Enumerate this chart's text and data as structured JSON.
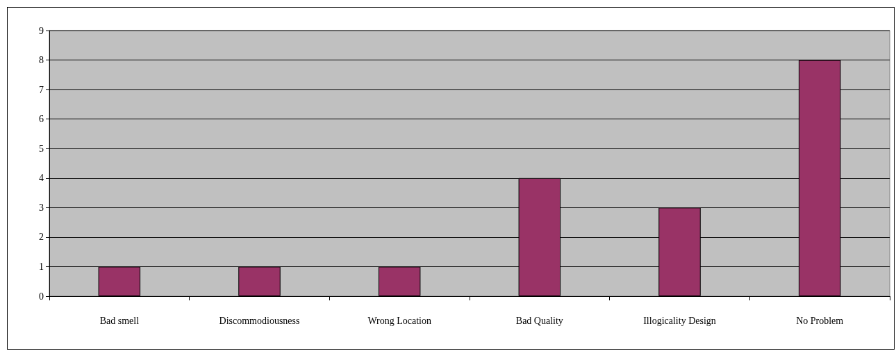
{
  "chart_data": {
    "type": "bar",
    "categories": [
      "Bad smell",
      "Discommodiousness",
      "Wrong Location",
      "Bad Quality",
      "Illogicality Design",
      "No Problem"
    ],
    "values": [
      1,
      1,
      1,
      4,
      3,
      8
    ],
    "color": "#993366",
    "ylim": [
      0,
      9
    ],
    "yticks": [
      0,
      1,
      2,
      3,
      4,
      5,
      6,
      7,
      8,
      9
    ],
    "grid": "y"
  }
}
